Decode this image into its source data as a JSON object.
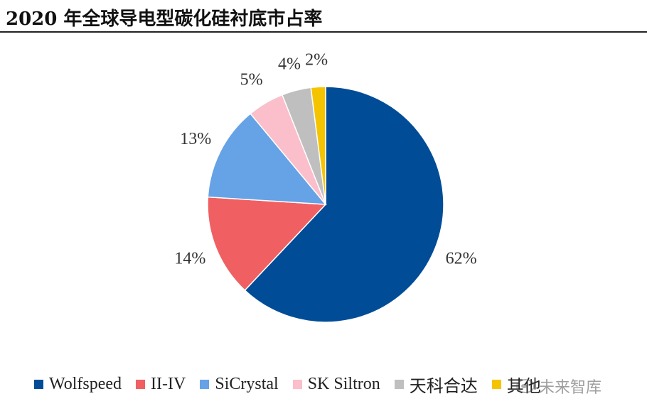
{
  "chart_data": {
    "type": "pie",
    "title": "2020 年全球导电型碳化硅衬底市占率",
    "categories": [
      "Wolfspeed",
      "II-IV",
      "SiCrystal",
      "SK Siltron",
      "天科合达",
      "其他"
    ],
    "values": [
      62,
      14,
      13,
      5,
      4,
      2
    ],
    "labels": [
      "62%",
      "14%",
      "13%",
      "5%",
      "4%",
      "2%"
    ],
    "colors": [
      "#004C97",
      "#F06062",
      "#66A2E6",
      "#FBBECB",
      "#BFBFBF",
      "#F5C400"
    ],
    "start_angle_deg": 0,
    "direction": "clockwise",
    "legend_position": "bottom"
  },
  "watermark": {
    "text": "未来智库",
    "icon": "camera-logo-icon"
  }
}
